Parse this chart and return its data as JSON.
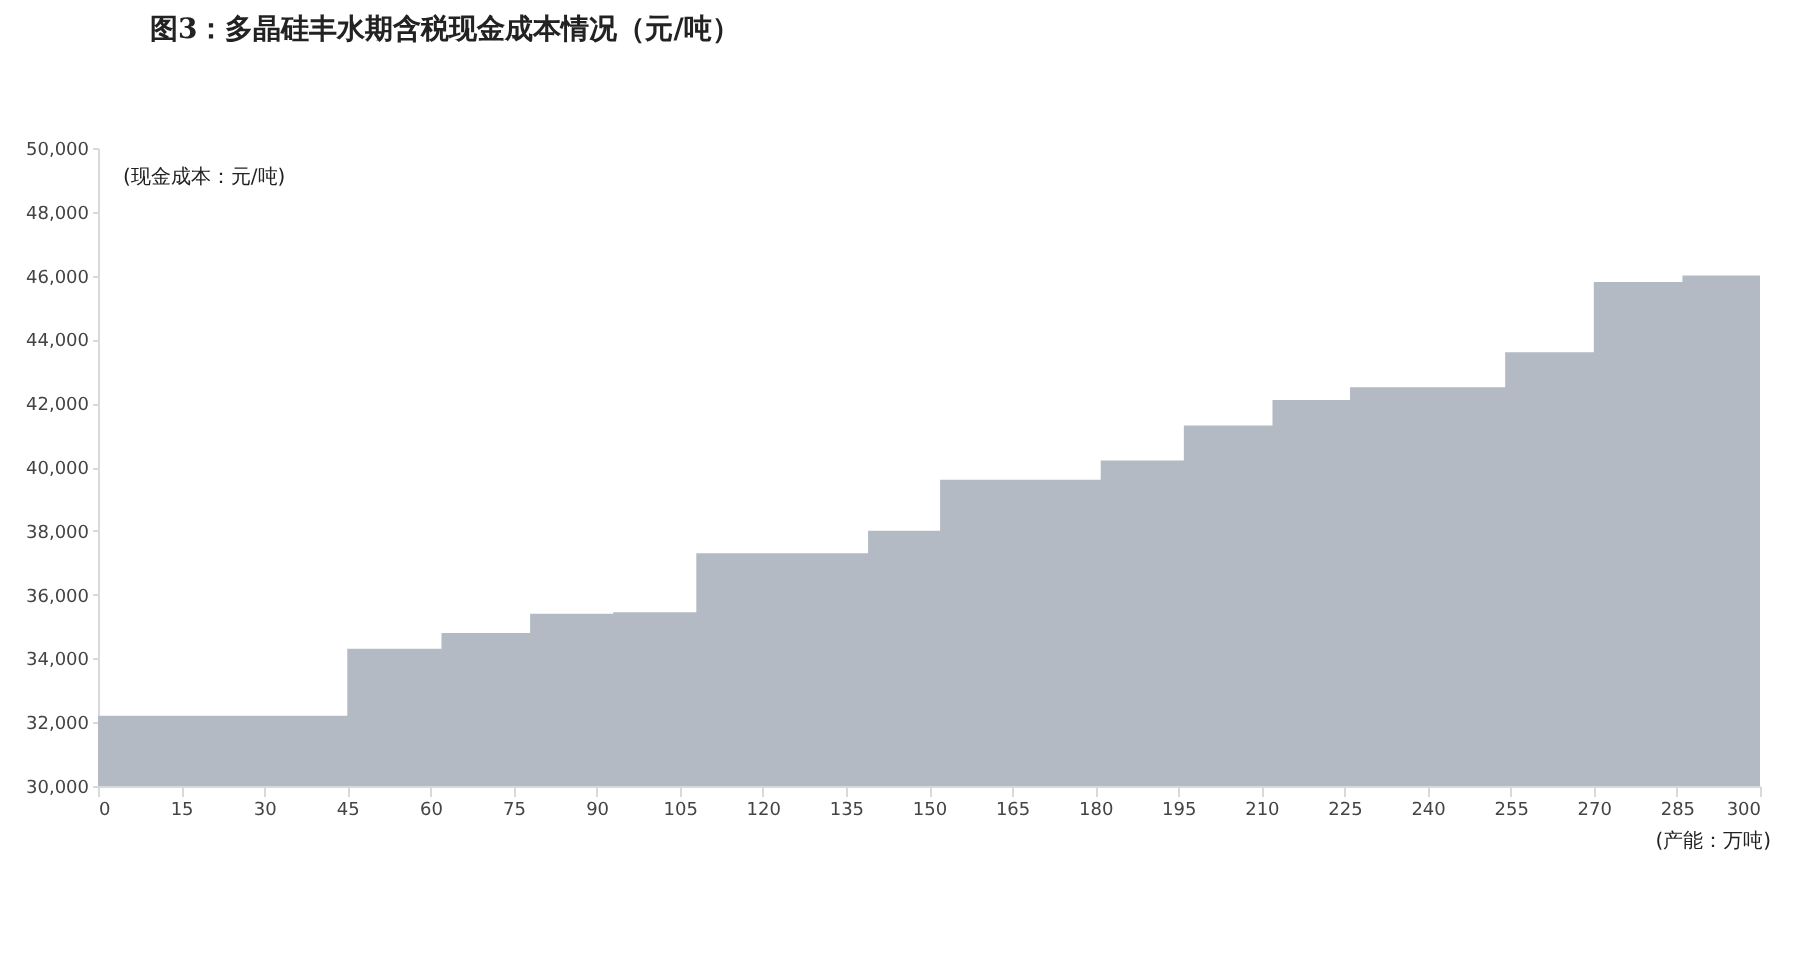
{
  "chart_data": {
    "type": "area",
    "title": "图3：多晶硅丰水期含税现金成本情况（元/吨）",
    "ylabel": "(现金成本：元/吨)",
    "xlabel": "(产能：万吨)",
    "x": [
      0,
      45,
      62,
      78,
      93,
      108,
      139,
      152,
      181,
      196,
      212,
      226,
      254,
      270,
      286,
      300
    ],
    "series": [
      {
        "color": "#b3bac3",
        "values": [
          32200,
          34300,
          34800,
          35400,
          35450,
          37300,
          38000,
          39600,
          40200,
          41300,
          42100,
          42500,
          43600,
          45800,
          46000,
          46000
        ]
      }
    ],
    "xlim": [
      0,
      300
    ],
    "xticks": [
      0,
      15,
      30,
      45,
      60,
      75,
      90,
      105,
      120,
      135,
      150,
      165,
      180,
      195,
      210,
      225,
      240,
      255,
      270,
      285,
      300
    ],
    "ylim": [
      30000,
      50000
    ],
    "yticks": [
      {
        "value": 30000,
        "label": "30,000"
      },
      {
        "value": 32000,
        "label": "32,000"
      },
      {
        "value": 34000,
        "label": "34,000"
      },
      {
        "value": 36000,
        "label": "36,000"
      },
      {
        "value": 38000,
        "label": "38,000"
      },
      {
        "value": 40000,
        "label": "40,000"
      },
      {
        "value": 42000,
        "label": "42,000"
      },
      {
        "value": 44000,
        "label": "44,000"
      },
      {
        "value": 46000,
        "label": "46,000"
      },
      {
        "value": 48000,
        "label": "48,000"
      },
      {
        "value": 50000,
        "label": "50,000"
      }
    ],
    "grid": false
  }
}
